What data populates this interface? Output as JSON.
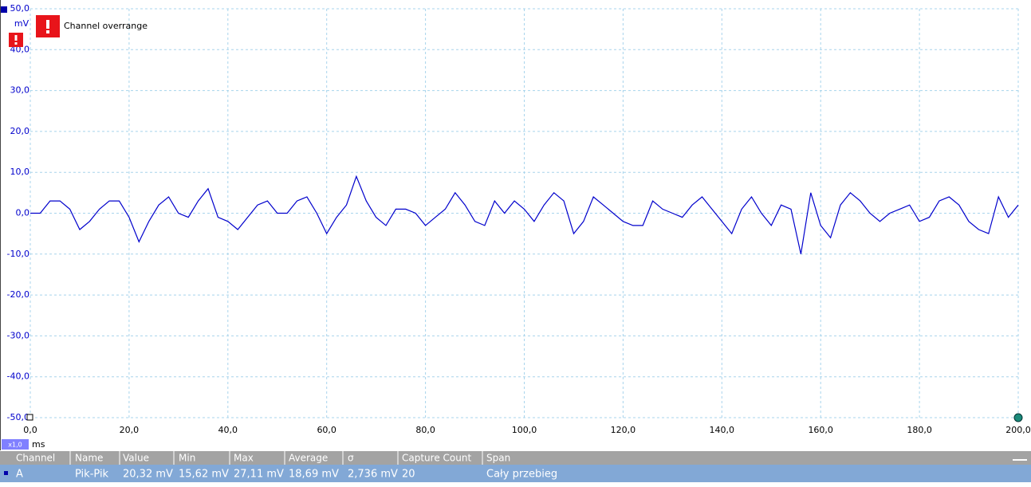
{
  "chart_data": {
    "type": "line",
    "y_unit": "mV",
    "x_unit": "ms",
    "zoom": "x1,0",
    "warning": "Channel overrange",
    "x": [
      0,
      2,
      4,
      6,
      8,
      10,
      12,
      14,
      16,
      18,
      20,
      22,
      24,
      26,
      28,
      30,
      32,
      34,
      36,
      38,
      40,
      42,
      44,
      46,
      48,
      50,
      52,
      54,
      56,
      58,
      60,
      62,
      64,
      66,
      68,
      70,
      72,
      74,
      76,
      78,
      80,
      82,
      84,
      86,
      88,
      90,
      92,
      94,
      96,
      98,
      100,
      102,
      104,
      106,
      108,
      110,
      112,
      114,
      116,
      118,
      120,
      122,
      124,
      126,
      128,
      130,
      132,
      134,
      136,
      138,
      140,
      142,
      144,
      146,
      148,
      150,
      152,
      154,
      156,
      158,
      160,
      162,
      164,
      166,
      168,
      170,
      172,
      174,
      176,
      178,
      180,
      182,
      184,
      186,
      188,
      190,
      192,
      194,
      196,
      198,
      200
    ],
    "series": [
      {
        "name": "A",
        "color": "#0000cc",
        "values": [
          0,
          0,
          3,
          3,
          1,
          -4,
          -2,
          1,
          3,
          3,
          -1,
          -7,
          -2,
          2,
          4,
          0,
          -1,
          3,
          6,
          -1,
          -2,
          -4,
          -1,
          2,
          3,
          0,
          0,
          3,
          4,
          0,
          -5,
          -1,
          2,
          9,
          3,
          -1,
          -3,
          1,
          1,
          0,
          -3,
          -1,
          1,
          5,
          2,
          -2,
          -3,
          3,
          0,
          3,
          1,
          -2,
          2,
          5,
          3,
          -5,
          -2,
          4,
          2,
          0,
          -2,
          -3,
          -3,
          3,
          1,
          0,
          -1,
          2,
          4,
          1,
          -2,
          -5,
          1,
          4,
          0,
          -3,
          2,
          1,
          -10,
          5,
          -3,
          -6,
          2,
          5,
          3,
          0,
          -2,
          0,
          1,
          2,
          -2,
          -1,
          3,
          4,
          2,
          -2,
          -4,
          -5,
          4,
          -1,
          2
        ]
      }
    ],
    "xlim": [
      0,
      200
    ],
    "xticks": [
      {
        "value": 0,
        "label": "0,0"
      },
      {
        "value": 20,
        "label": "20,0"
      },
      {
        "value": 40,
        "label": "40,0"
      },
      {
        "value": 60,
        "label": "60,0"
      },
      {
        "value": 80,
        "label": "80,0"
      },
      {
        "value": 100,
        "label": "100,0"
      },
      {
        "value": 120,
        "label": "120,0"
      },
      {
        "value": 140,
        "label": "140,0"
      },
      {
        "value": 160,
        "label": "160,0"
      },
      {
        "value": 180,
        "label": "180,0"
      },
      {
        "value": 200,
        "label": "200,0"
      }
    ],
    "ylim": [
      -50,
      50
    ],
    "yticks": [
      {
        "value": -50,
        "label": "-50,0"
      },
      {
        "value": -40,
        "label": "-40,0"
      },
      {
        "value": -30,
        "label": "-30,0"
      },
      {
        "value": -20,
        "label": "-20,0"
      },
      {
        "value": -10,
        "label": "-10,0"
      },
      {
        "value": 0,
        "label": "0,0"
      },
      {
        "value": 10,
        "label": "10,0"
      },
      {
        "value": 20,
        "label": "20,0"
      },
      {
        "value": 30,
        "label": "30,0"
      },
      {
        "value": 40,
        "label": "40,0"
      },
      {
        "value": 50,
        "label": "50,0"
      }
    ],
    "grid": true
  },
  "table": {
    "header": [
      "Channel",
      "Name",
      "Value",
      "Min",
      "Max",
      "Average",
      "σ",
      "Capture Count",
      "Span"
    ],
    "rows": [
      [
        "A",
        "Pik-Pik",
        "20,32 mV",
        "15,62 mV",
        "27,11 mV",
        "18,69 mV",
        "2,736 mV",
        "20",
        "Cały przebieg"
      ]
    ]
  }
}
